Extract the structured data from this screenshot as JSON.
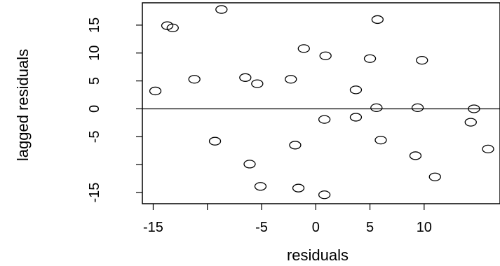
{
  "chart_data": {
    "type": "scatter",
    "title": "",
    "xlabel": "residuals",
    "ylabel": "lagged residuals",
    "xlim": [
      -16,
      17
    ],
    "ylim": [
      -17,
      19
    ],
    "xticks": [
      -15,
      -10,
      -5,
      0,
      5,
      10
    ],
    "xtick_labels": [
      "-15",
      "",
      "-5",
      "0",
      "5",
      "10"
    ],
    "yticks": [
      -15,
      -10,
      -5,
      0,
      5,
      10,
      15
    ],
    "ytick_labels": [
      "-15",
      "",
      "-5",
      "0",
      "5",
      "10",
      "15"
    ],
    "hline": 0,
    "marker": "open-circle",
    "grid": false,
    "points": [
      {
        "x": -14.8,
        "y": 3.2
      },
      {
        "x": -13.7,
        "y": 14.9
      },
      {
        "x": -13.2,
        "y": 14.5
      },
      {
        "x": -11.2,
        "y": 5.3
      },
      {
        "x": -8.7,
        "y": 17.8
      },
      {
        "x": -9.3,
        "y": -5.8
      },
      {
        "x": -6.5,
        "y": 5.6
      },
      {
        "x": -5.4,
        "y": 4.5
      },
      {
        "x": -6.1,
        "y": -9.9
      },
      {
        "x": -5.1,
        "y": -13.9
      },
      {
        "x": -2.3,
        "y": 5.3
      },
      {
        "x": -1.1,
        "y": 10.8
      },
      {
        "x": -1.6,
        "y": -14.2
      },
      {
        "x": -1.9,
        "y": -6.5
      },
      {
        "x": 0.9,
        "y": 9.5
      },
      {
        "x": 0.8,
        "y": -1.9
      },
      {
        "x": 0.8,
        "y": -15.4
      },
      {
        "x": 3.7,
        "y": 3.4
      },
      {
        "x": 3.7,
        "y": -1.5
      },
      {
        "x": 5.0,
        "y": 9.0
      },
      {
        "x": 5.7,
        "y": 16.0
      },
      {
        "x": 5.6,
        "y": 0.2
      },
      {
        "x": 6.0,
        "y": -5.6
      },
      {
        "x": 9.2,
        "y": -8.4
      },
      {
        "x": 9.4,
        "y": 0.2
      },
      {
        "x": 9.8,
        "y": 8.7
      },
      {
        "x": 11.0,
        "y": -12.2
      },
      {
        "x": 14.3,
        "y": -2.4
      },
      {
        "x": 14.6,
        "y": 0.0
      },
      {
        "x": 15.9,
        "y": -7.2
      }
    ]
  }
}
